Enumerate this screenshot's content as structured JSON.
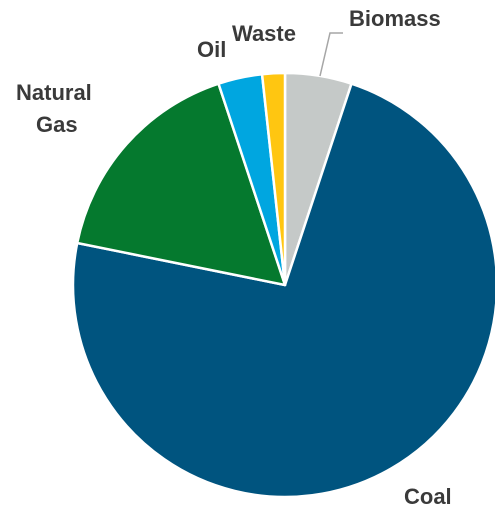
{
  "chart_data": {
    "type": "pie",
    "title": "",
    "start_angle_deg": 0,
    "direction": "clockwise",
    "slices": [
      {
        "label": "Biomass",
        "value": 5,
        "color": "#C5C9C8"
      },
      {
        "label": "Coal",
        "value": 72,
        "color": "#00547F"
      },
      {
        "label": "Natural Gas",
        "value": 16.5,
        "color": "#05792E"
      },
      {
        "label": "Oil",
        "value": 3.3,
        "color": "#00A6E0"
      },
      {
        "label": "Waste",
        "value": 1.7,
        "color": "#FFC611"
      }
    ],
    "slice_border_color": "#FFFFFF",
    "label_color": "#3A3A3A",
    "leader_line_color": "#A6A6A6"
  }
}
